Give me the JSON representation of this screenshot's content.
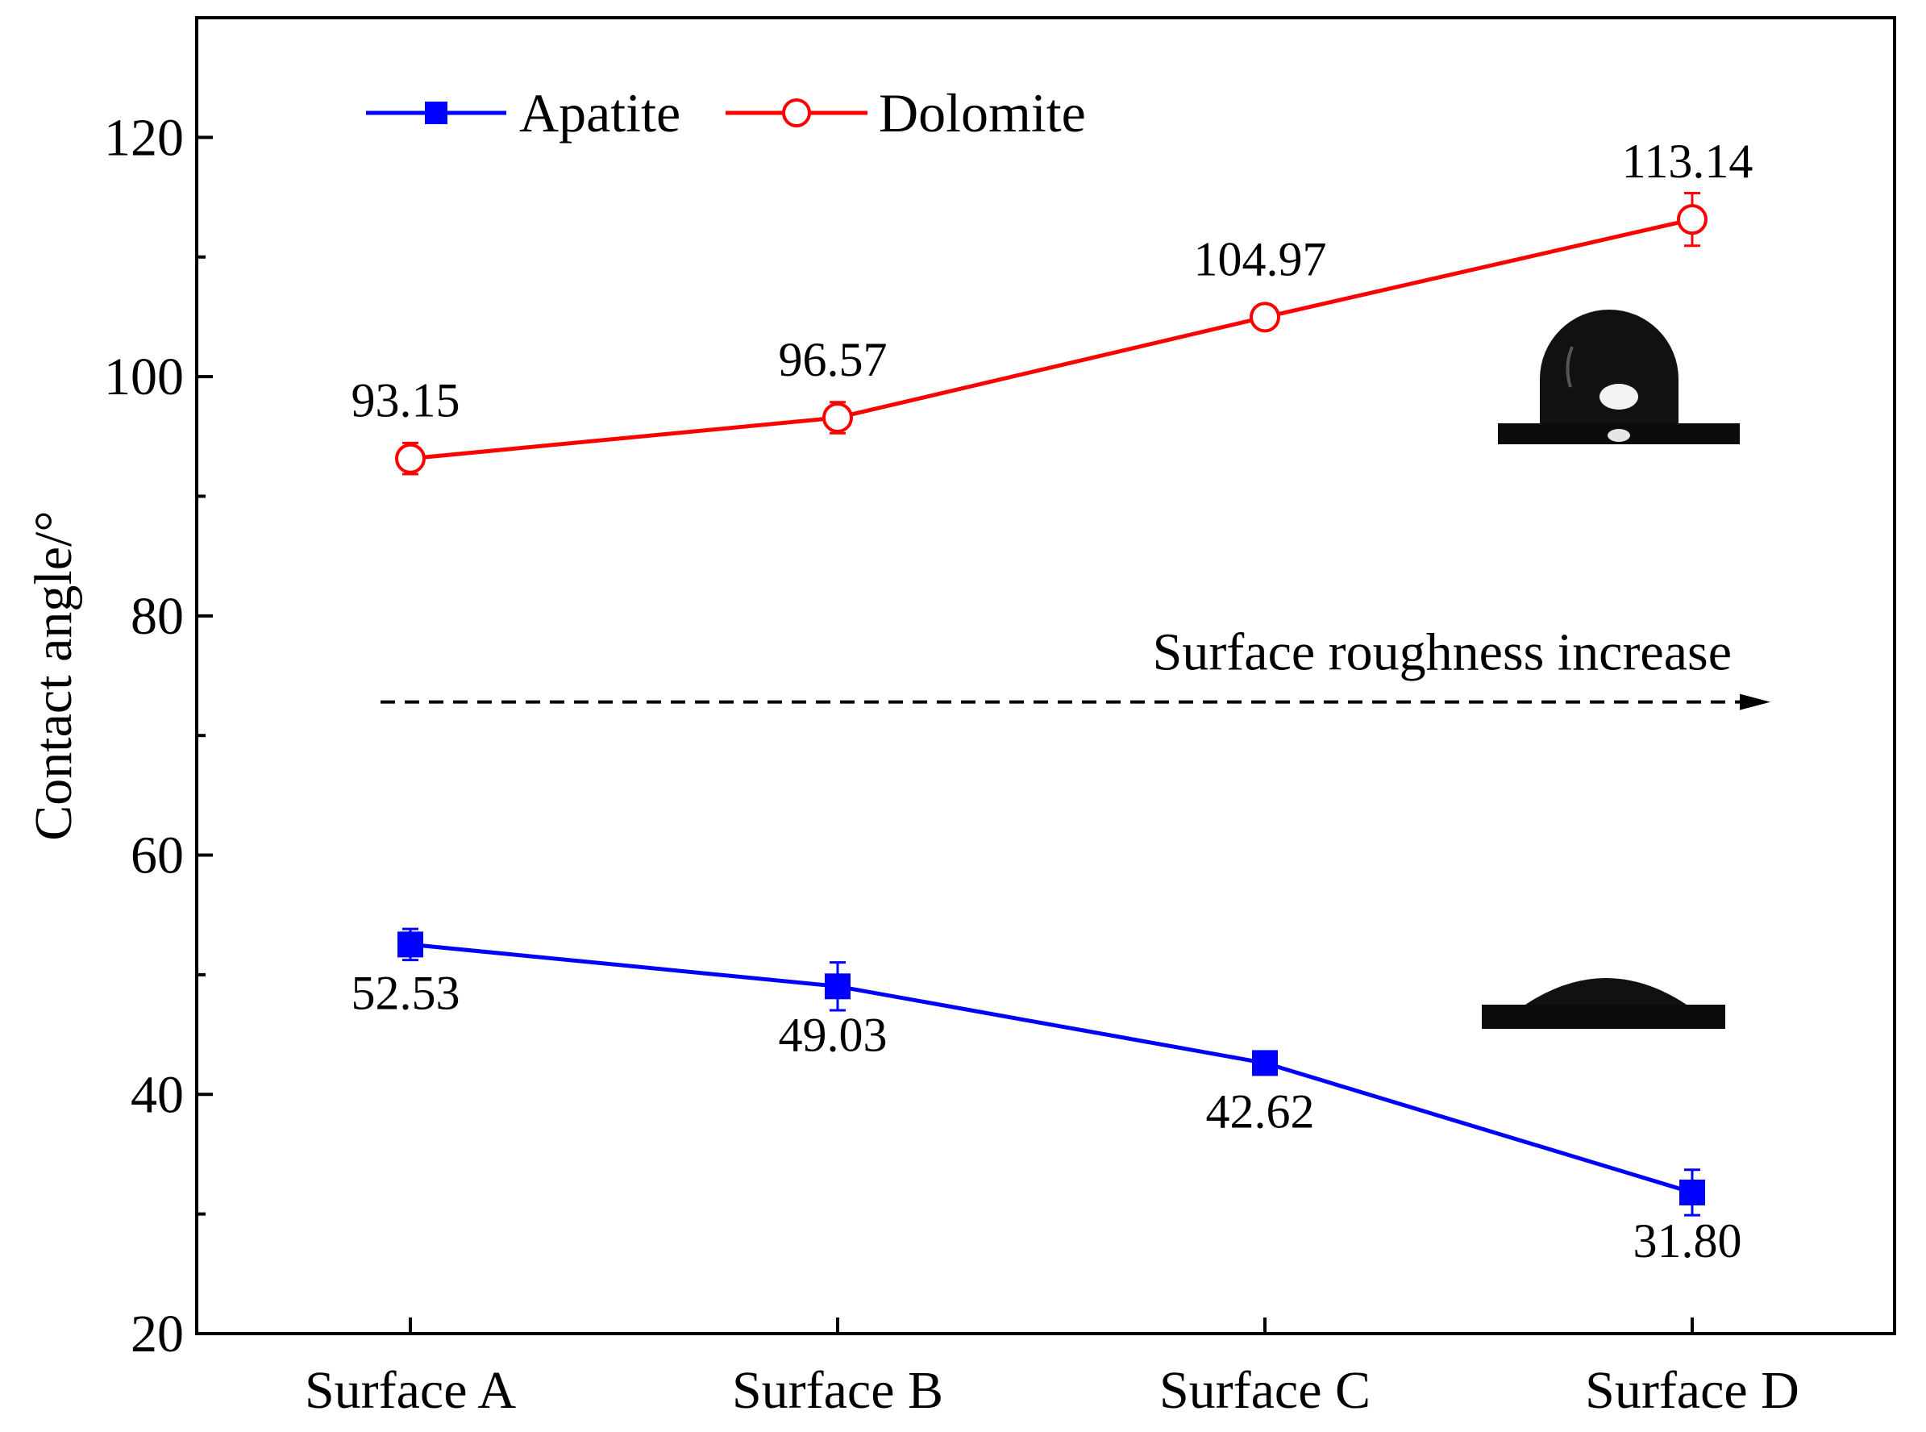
{
  "chart_data": {
    "type": "line",
    "title": "",
    "xlabel": "",
    "ylabel": "Contact angle/°",
    "categories": [
      "Surface A",
      "Surface B",
      "Surface C",
      "Surface D"
    ],
    "ylim": [
      20,
      130
    ],
    "yticks": [
      20,
      40,
      60,
      80,
      100,
      120
    ],
    "ytick_labels": [
      "20",
      "40",
      "60",
      "80",
      "100",
      "120"
    ],
    "grid": false,
    "legend_position": "top-left",
    "series": [
      {
        "name": "Apatite",
        "color": "#0000ff",
        "marker": "filled-square",
        "values": [
          52.53,
          49.03,
          42.62,
          31.8
        ],
        "labels": [
          "52.53",
          "49.03",
          "42.62",
          "31.80"
        ],
        "errors": [
          1.3,
          2.0,
          0.8,
          1.9
        ],
        "label_position": "below"
      },
      {
        "name": "Dolomite",
        "color": "#ff0000",
        "marker": "open-circle",
        "values": [
          93.15,
          96.57,
          104.97,
          113.14
        ],
        "labels": [
          "93.15",
          "96.57",
          "104.97",
          "113.14"
        ],
        "errors": [
          1.3,
          1.3,
          0.8,
          2.2
        ],
        "label_position": "above"
      }
    ],
    "annotations": [
      {
        "text": "Surface roughness increase",
        "kind": "dashed-arrow",
        "y_value": 72.8
      }
    ],
    "insets": [
      {
        "name": "droplet-high-contact-angle",
        "near_series": "Dolomite"
      },
      {
        "name": "droplet-low-contact-angle",
        "near_series": "Apatite"
      }
    ]
  }
}
